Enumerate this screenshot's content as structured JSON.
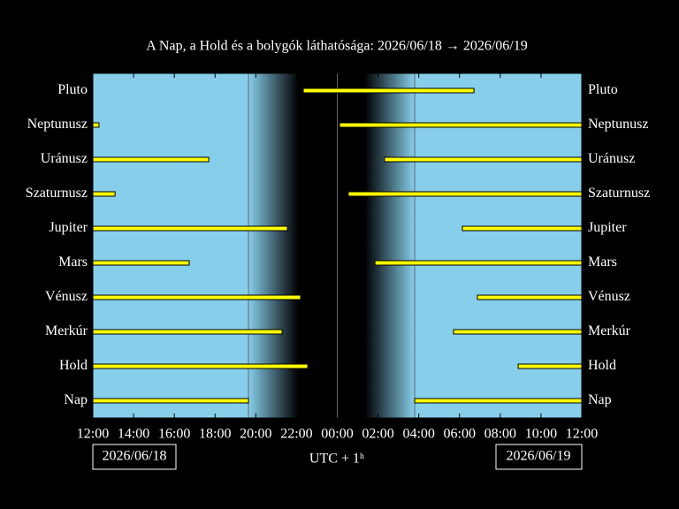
{
  "chart_data": {
    "type": "visibility",
    "title": "A Nap, a Hold és a bolygók láthatósága: 2026/06/18 → 2026/06/19",
    "xlabel": "UTC + 1ʰ",
    "start_date": "2026/06/18",
    "end_date": "2026/06/19",
    "xlim": [
      12,
      36
    ],
    "xticks": [
      {
        "value": 12,
        "label": "12:00"
      },
      {
        "value": 14,
        "label": "14:00"
      },
      {
        "value": 16,
        "label": "16:00"
      },
      {
        "value": 18,
        "label": "18:00"
      },
      {
        "value": 20,
        "label": "20:00"
      },
      {
        "value": 22,
        "label": "22:00"
      },
      {
        "value": 24,
        "label": "00:00"
      },
      {
        "value": 26,
        "label": "02:00"
      },
      {
        "value": 28,
        "label": "04:00"
      },
      {
        "value": 30,
        "label": "06:00"
      },
      {
        "value": 32,
        "label": "08:00"
      },
      {
        "value": 34,
        "label": "10:00"
      },
      {
        "value": 36,
        "label": "12:00"
      }
    ],
    "color": "#ffff00",
    "rows": [
      {
        "name": "Pluto",
        "segments": [
          [
            22.33,
            30.71
          ]
        ]
      },
      {
        "name": "Neptunusz",
        "segments": [
          [
            12,
            12.3
          ],
          [
            24.11,
            36
          ]
        ]
      },
      {
        "name": "Uránusz",
        "segments": [
          [
            12,
            17.69
          ],
          [
            26.32,
            36
          ]
        ]
      },
      {
        "name": "Szaturnusz",
        "segments": [
          [
            12,
            13.09
          ],
          [
            24.54,
            36
          ]
        ]
      },
      {
        "name": "Jupiter",
        "segments": [
          [
            12,
            21.55
          ],
          [
            30.14,
            36
          ]
        ]
      },
      {
        "name": "Mars",
        "segments": [
          [
            12,
            16.73
          ],
          [
            25.85,
            36
          ]
        ]
      },
      {
        "name": "Vénusz",
        "segments": [
          [
            12,
            22.2
          ],
          [
            30.88,
            36
          ]
        ]
      },
      {
        "name": "Merkúr",
        "segments": [
          [
            12,
            21.29
          ],
          [
            29.71,
            36
          ]
        ]
      },
      {
        "name": "Hold",
        "segments": [
          [
            12,
            22.55
          ],
          [
            32.88,
            36
          ]
        ]
      },
      {
        "name": "Nap",
        "segments": [
          [
            12,
            19.64
          ],
          [
            27.8,
            36
          ]
        ]
      }
    ]
  }
}
